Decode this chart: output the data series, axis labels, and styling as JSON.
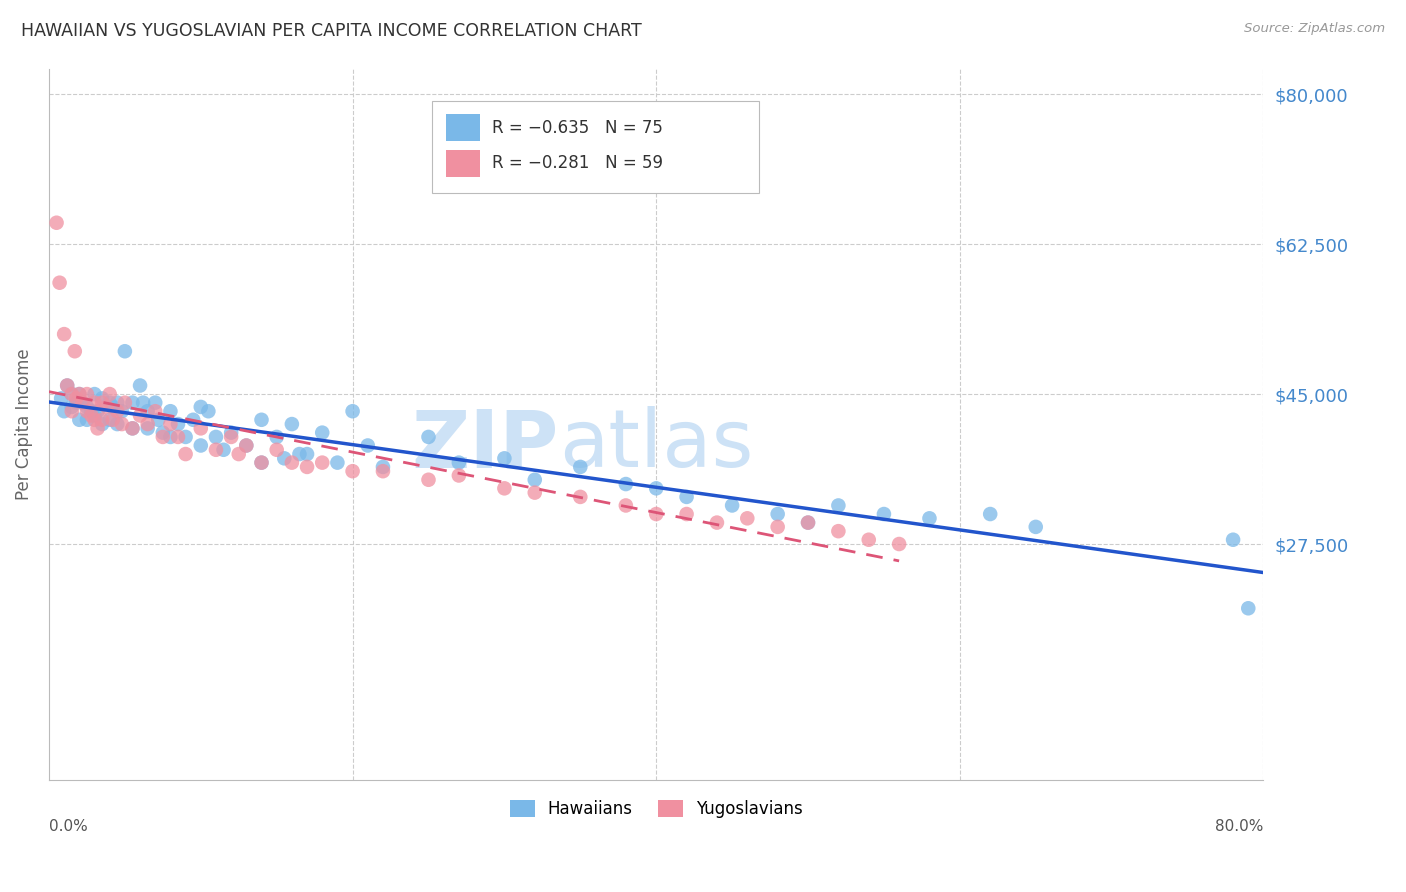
{
  "title": "HAWAIIAN VS YUGOSLAVIAN PER CAPITA INCOME CORRELATION CHART",
  "source": "Source: ZipAtlas.com",
  "ylabel": "Per Capita Income",
  "ymin": 0,
  "ymax": 83000,
  "xmin": 0.0,
  "xmax": 0.8,
  "color_hawaiian": "#7ab8e8",
  "color_yugoslav": "#f090a0",
  "color_trend_hawaiian": "#2255cc",
  "color_trend_yugoslav": "#dd5577",
  "color_ytick_labels": "#4488cc",
  "color_grid": "#cccccc",
  "hawaiian_x": [
    0.008,
    0.01,
    0.012,
    0.015,
    0.015,
    0.018,
    0.02,
    0.02,
    0.022,
    0.025,
    0.025,
    0.028,
    0.03,
    0.03,
    0.032,
    0.035,
    0.035,
    0.04,
    0.04,
    0.042,
    0.045,
    0.045,
    0.048,
    0.05,
    0.055,
    0.055,
    0.06,
    0.062,
    0.065,
    0.065,
    0.07,
    0.072,
    0.075,
    0.08,
    0.08,
    0.085,
    0.09,
    0.095,
    0.1,
    0.1,
    0.105,
    0.11,
    0.115,
    0.12,
    0.13,
    0.14,
    0.14,
    0.15,
    0.155,
    0.16,
    0.165,
    0.17,
    0.18,
    0.19,
    0.2,
    0.21,
    0.22,
    0.25,
    0.27,
    0.3,
    0.32,
    0.35,
    0.38,
    0.4,
    0.42,
    0.45,
    0.48,
    0.5,
    0.52,
    0.55,
    0.58,
    0.62,
    0.65,
    0.78,
    0.79
  ],
  "hawaiian_y": [
    44500,
    43000,
    46000,
    45000,
    43500,
    44000,
    45000,
    42000,
    44000,
    43500,
    42000,
    43000,
    45000,
    42500,
    43000,
    44500,
    41500,
    44000,
    42000,
    43500,
    44000,
    41500,
    43000,
    50000,
    44000,
    41000,
    46000,
    44000,
    43000,
    41000,
    44000,
    42000,
    40500,
    43000,
    40000,
    41500,
    40000,
    42000,
    43500,
    39000,
    43000,
    40000,
    38500,
    40500,
    39000,
    42000,
    37000,
    40000,
    37500,
    41500,
    38000,
    38000,
    40500,
    37000,
    43000,
    39000,
    36500,
    40000,
    37000,
    37500,
    35000,
    36500,
    34500,
    34000,
    33000,
    32000,
    31000,
    30000,
    32000,
    31000,
    30500,
    31000,
    29500,
    28000,
    20000
  ],
  "yugoslav_x": [
    0.005,
    0.007,
    0.01,
    0.012,
    0.015,
    0.015,
    0.017,
    0.018,
    0.02,
    0.022,
    0.025,
    0.025,
    0.028,
    0.03,
    0.03,
    0.032,
    0.035,
    0.035,
    0.038,
    0.04,
    0.042,
    0.045,
    0.048,
    0.05,
    0.055,
    0.06,
    0.065,
    0.07,
    0.075,
    0.08,
    0.085,
    0.09,
    0.1,
    0.11,
    0.12,
    0.125,
    0.13,
    0.14,
    0.15,
    0.16,
    0.17,
    0.18,
    0.2,
    0.22,
    0.25,
    0.27,
    0.3,
    0.32,
    0.35,
    0.38,
    0.4,
    0.42,
    0.44,
    0.46,
    0.48,
    0.5,
    0.52,
    0.54,
    0.56
  ],
  "yugoslav_y": [
    65000,
    58000,
    52000,
    46000,
    45000,
    43000,
    50000,
    44500,
    45000,
    44000,
    45000,
    43000,
    42500,
    44000,
    42000,
    41000,
    44000,
    42000,
    43500,
    45000,
    42000,
    43000,
    41500,
    44000,
    41000,
    42500,
    41500,
    43000,
    40000,
    41500,
    40000,
    38000,
    41000,
    38500,
    40000,
    38000,
    39000,
    37000,
    38500,
    37000,
    36500,
    37000,
    36000,
    36000,
    35000,
    35500,
    34000,
    33500,
    33000,
    32000,
    31000,
    31000,
    30000,
    30500,
    29500,
    30000,
    29000,
    28000,
    27500
  ],
  "ytick_positions": [
    27500,
    45000,
    62500,
    80000
  ],
  "ytick_labels": [
    "$27,500",
    "$45,000",
    "$62,500",
    "$80,000"
  ],
  "xtick_positions": [
    0.0,
    0.2,
    0.4,
    0.6,
    0.8
  ],
  "legend_r1": "R = −0.635",
  "legend_n1": "N = 75",
  "legend_r2": "R = −0.281",
  "legend_n2": "N = 59"
}
